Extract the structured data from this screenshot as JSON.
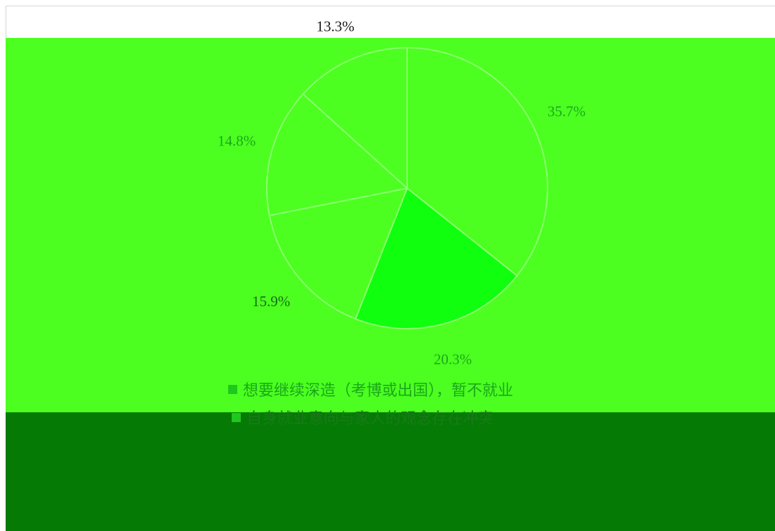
{
  "chart_data": {
    "type": "pie",
    "title": "",
    "slices": [
      {
        "label": "想要继续深造（考博或出国），暂不就业",
        "value": 35.7,
        "label_text": "35.7%"
      },
      {
        "label": "自身就业意向与家人的观念存在冲突",
        "value": 20.3,
        "label_text": "20.3%"
      },
      {
        "label": "",
        "value": 15.9,
        "label_text": "15.9%"
      },
      {
        "label": "",
        "value": 14.8,
        "label_text": "14.8%"
      },
      {
        "label": "",
        "value": 13.3,
        "label_text": "13.3%"
      }
    ],
    "start_angle_deg": 0,
    "direction": "clockwise",
    "legend_placement": "bottom"
  },
  "colors": {
    "band_light": "#4cff20",
    "band_dark": "#057a05",
    "slice_fills": [
      "#4cff20",
      "#0fff0f",
      "#4cff20",
      "#4cff20",
      "#4cff20"
    ],
    "slice_label_colors": [
      "#1aa81a",
      "#1aa81a",
      "#1a6b1a",
      "#1aa81a",
      "#1a1a1a"
    ],
    "legend_text_colors": [
      "#1aa81a",
      "#1a7a1a",
      "#1a7a1a",
      "#1a7a1a",
      "#1a7a1a"
    ],
    "legend_swatch_colors": [
      "#1ec81e",
      "#1ec81e",
      "#36ff36",
      "#36ff36",
      "#36ff36"
    ]
  }
}
